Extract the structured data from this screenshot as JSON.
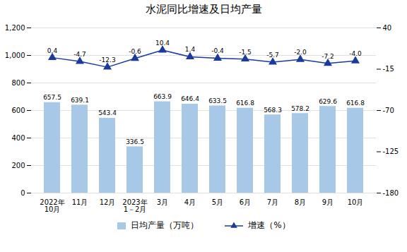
{
  "chart_data": {
    "type": "bar",
    "title": "水泥同比增速及日均产量",
    "categories": [
      "2022年\n10月",
      "11月",
      "12月",
      "2023年\n1－2月",
      "3月",
      "4月",
      "5月",
      "6月",
      "7月",
      "8月",
      "9月",
      "10月"
    ],
    "series": [
      {
        "name": "日均产量（万吨）",
        "type": "bar",
        "color": "#a8c8e8",
        "values": [
          657.5,
          639.1,
          543.4,
          336.5,
          663.9,
          646.4,
          633.5,
          616.8,
          568.3,
          578.2,
          629.6,
          616.8
        ]
      },
      {
        "name": "增速（%）",
        "type": "line",
        "color": "#1a3a9c",
        "marker": "triangle",
        "axis": "y2",
        "values": [
          0.4,
          -4.7,
          -12.3,
          -0.6,
          10.4,
          1.4,
          -0.4,
          -1.5,
          -5.7,
          -2.0,
          -7.2,
          -4.0
        ],
        "value_labels": [
          "0.4",
          "-4.7",
          "-12.3",
          "-0.6",
          "10.4",
          "1.4",
          "-0.4",
          "-1.5",
          "-5.7",
          "-2.0",
          "-7.2",
          "-4.0"
        ]
      }
    ],
    "ylim": [
      0,
      1200
    ],
    "yticks": [
      0,
      200,
      400,
      600,
      800,
      1000,
      1200
    ],
    "y2lim": [
      -180,
      40
    ],
    "y2ticks": [
      -180,
      -125,
      -70,
      -15,
      40
    ],
    "grid": true,
    "data_labels": true,
    "legend": "bottom"
  }
}
